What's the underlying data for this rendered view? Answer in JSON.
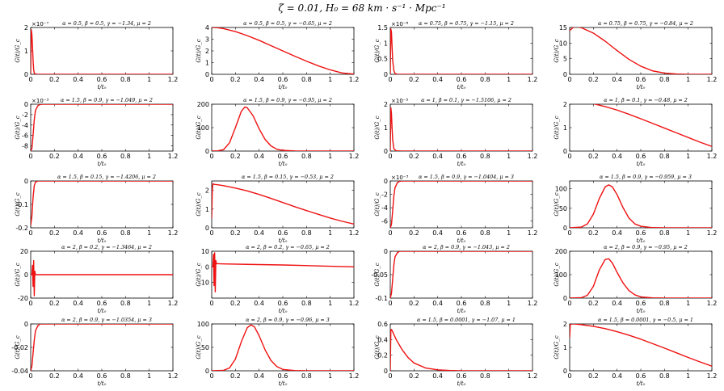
{
  "figure": {
    "title": "ζ = 0.01, H₀ = 68 km · s⁻¹ · Mpc⁻¹"
  },
  "colors": {
    "curve": "#ee1111",
    "axes": "#000000"
  },
  "chart_data": [
    {
      "type": "line",
      "title": "α = 0.5, β = 0.5, γ = −1.34, μ = 2",
      "xlabel": "t/t₀",
      "ylabel": "G(t)/G_c",
      "xlim": [
        0,
        1.2
      ],
      "ylim": [
        0,
        2
      ],
      "y_multiplier": "×10⁻⁷",
      "xticks": [
        0,
        0.2,
        0.4,
        0.6,
        0.8,
        1,
        1.2
      ],
      "yticks": [
        0,
        1,
        2
      ],
      "x": [
        0,
        0.005,
        0.01,
        0.015,
        0.02,
        0.025,
        0.03,
        0.04,
        0.06,
        0.1,
        0.3,
        0.6,
        1.2
      ],
      "y": [
        0,
        1.9,
        1.7,
        1.2,
        0.6,
        0.2,
        0.05,
        0.01,
        0,
        0,
        0,
        0,
        0
      ]
    },
    {
      "type": "line",
      "title": "α = 0.5, β = 0.5, γ = −0.65, μ = 2",
      "xlabel": "t/t₀",
      "ylabel": "G(t)/G_c",
      "xlim": [
        0,
        1.2
      ],
      "ylim": [
        0,
        4
      ],
      "xticks": [
        0,
        0.2,
        0.4,
        0.6,
        0.8,
        1,
        1.2
      ],
      "yticks": [
        0,
        1,
        2,
        3,
        4
      ],
      "x": [
        0,
        0.05,
        0.1,
        0.2,
        0.3,
        0.4,
        0.5,
        0.6,
        0.7,
        0.8,
        0.9,
        1.0,
        1.1,
        1.2
      ],
      "y": [
        4.0,
        3.98,
        3.9,
        3.65,
        3.3,
        2.9,
        2.45,
        2.0,
        1.55,
        1.12,
        0.72,
        0.38,
        0.12,
        0.02
      ]
    },
    {
      "type": "line",
      "title": "α = 0.75, β = 0.75, γ = −1.15, μ = 2",
      "xlabel": "t/t₀",
      "ylabel": "G(t)/G_c",
      "xlim": [
        0,
        1.2
      ],
      "ylim": [
        0,
        1.5
      ],
      "y_multiplier": "×10⁻⁸",
      "xticks": [
        0,
        0.2,
        0.4,
        0.6,
        0.8,
        1,
        1.2
      ],
      "yticks": [
        0,
        0.5,
        1,
        1.5
      ],
      "x": [
        0,
        0.005,
        0.01,
        0.015,
        0.02,
        0.03,
        0.04,
        0.06,
        0.1,
        0.3,
        0.6,
        1.2
      ],
      "y": [
        0,
        1.45,
        1.35,
        0.9,
        0.45,
        0.12,
        0.03,
        0,
        0,
        0,
        0,
        0
      ]
    },
    {
      "type": "line",
      "title": "α = 0.75, β = 0.75, γ = −0.84, μ = 2",
      "xlabel": "t/t₀",
      "ylabel": "G(t)/G_c",
      "xlim": [
        0,
        1.2
      ],
      "ylim": [
        0,
        15
      ],
      "xticks": [
        0,
        0.2,
        0.4,
        0.6,
        0.8,
        1,
        1.2
      ],
      "yticks": [
        0,
        5,
        10,
        15
      ],
      "x": [
        0,
        0.03,
        0.06,
        0.1,
        0.2,
        0.3,
        0.4,
        0.5,
        0.6,
        0.7,
        0.8,
        0.9,
        1.0,
        1.2
      ],
      "y": [
        14.0,
        15.0,
        15.2,
        14.9,
        13.2,
        10.6,
        7.6,
        4.8,
        2.6,
        1.1,
        0.4,
        0.1,
        0.02,
        0
      ]
    },
    {
      "type": "line",
      "title": "α = 1.5, β = 0.9, γ = −1.049, μ = 2",
      "xlabel": "t/t₀",
      "ylabel": "G(t)/G_c",
      "xlim": [
        0,
        1.2
      ],
      "ylim": [
        -9,
        0
      ],
      "y_multiplier": "×10⁻³",
      "xticks": [
        0,
        0.2,
        0.4,
        0.6,
        0.8,
        1,
        1.2
      ],
      "yticks": [
        -8,
        -6,
        -4,
        -2,
        0
      ],
      "x": [
        0,
        0.01,
        0.02,
        0.03,
        0.04,
        0.06,
        0.08,
        0.1,
        0.3,
        0.6,
        1.2
      ],
      "y": [
        -9,
        -8.5,
        -6,
        -3,
        -1.2,
        -0.3,
        -0.05,
        0,
        0,
        0,
        0
      ]
    },
    {
      "type": "line",
      "title": "α = 1.5, β = 0.9, γ = −0.95, μ = 2",
      "xlabel": "t/t₀",
      "ylabel": "G(t)/G_c",
      "xlim": [
        0,
        1.2
      ],
      "ylim": [
        0,
        200
      ],
      "xticks": [
        0,
        0.2,
        0.4,
        0.6,
        0.8,
        1,
        1.2
      ],
      "yticks": [
        0,
        100,
        200
      ],
      "x": [
        0,
        0.05,
        0.1,
        0.15,
        0.2,
        0.25,
        0.28,
        0.3,
        0.35,
        0.4,
        0.45,
        0.5,
        0.55,
        0.6,
        0.7,
        0.8,
        1.2
      ],
      "y": [
        0,
        1,
        6,
        35,
        100,
        170,
        188,
        185,
        150,
        95,
        50,
        22,
        8,
        3,
        0.5,
        0,
        0
      ]
    },
    {
      "type": "line",
      "title": "α = 1, β = 0.1, γ = −1.5106, μ = 2",
      "xlabel": "t/t₀",
      "ylabel": "G(t)/G_c",
      "xlim": [
        0,
        1.2
      ],
      "ylim": [
        0,
        2
      ],
      "y_multiplier": "×10⁻⁵",
      "xticks": [
        0,
        0.2,
        0.4,
        0.6,
        0.8,
        1,
        1.2
      ],
      "yticks": [
        0,
        1,
        2
      ],
      "x": [
        0,
        0.005,
        0.01,
        0.015,
        0.02,
        0.03,
        0.05,
        0.1,
        0.3,
        0.6,
        1.2
      ],
      "y": [
        0,
        1.85,
        1.6,
        1.0,
        0.5,
        0.1,
        0.01,
        0,
        0,
        0,
        0
      ]
    },
    {
      "type": "line",
      "title": "α = 1, β = 0.1, γ = −0.48, μ = 2",
      "xlabel": "t/t₀",
      "ylabel": "G(t)/G_c",
      "xlim": [
        0,
        1.2
      ],
      "ylim": [
        0,
        2
      ],
      "xticks": [
        0,
        0.2,
        0.4,
        0.6,
        0.8,
        1,
        1.2
      ],
      "yticks": [
        0,
        1,
        2
      ],
      "x": [
        0,
        0.05,
        0.1,
        0.2,
        0.3,
        0.4,
        0.5,
        0.6,
        0.7,
        0.8,
        0.9,
        1.0,
        1.1,
        1.2
      ],
      "y": [
        2.1,
        2.12,
        2.1,
        2.02,
        1.9,
        1.75,
        1.57,
        1.38,
        1.18,
        0.98,
        0.78,
        0.58,
        0.38,
        0.2
      ]
    },
    {
      "type": "line",
      "title": "α = 1.5, β = 0.15, γ = −1.4206, μ = 2",
      "xlabel": "t/t₀",
      "ylabel": "G(t)/G_c",
      "xlim": [
        0,
        1.2
      ],
      "ylim": [
        -0.2,
        0
      ],
      "xticks": [
        0,
        0.2,
        0.4,
        0.6,
        0.8,
        1,
        1.2
      ],
      "yticks": [
        -0.2,
        -0.1,
        0
      ],
      "x": [
        0,
        0.01,
        0.02,
        0.03,
        0.04,
        0.06,
        0.1,
        0.3,
        0.6,
        1.2
      ],
      "y": [
        -0.19,
        -0.15,
        -0.07,
        -0.02,
        -0.005,
        0,
        0,
        0,
        0,
        0
      ]
    },
    {
      "type": "line",
      "title": "α = 1.5, β = 0.15, γ = −0.53, μ = 2",
      "xlabel": "t/t₀",
      "ylabel": "G(t)/G_c",
      "xlim": [
        0,
        1.2
      ],
      "ylim": [
        0,
        2.5
      ],
      "xticks": [
        0,
        0.2,
        0.4,
        0.6,
        0.8,
        1,
        1.2
      ],
      "yticks": [
        0,
        1,
        2
      ],
      "x": [
        0,
        0.005,
        0.01,
        0.02,
        0.05,
        0.1,
        0.2,
        0.3,
        0.4,
        0.5,
        0.6,
        0.7,
        0.8,
        0.9,
        1.0,
        1.1,
        1.2
      ],
      "y": [
        0.5,
        2.0,
        2.35,
        2.32,
        2.3,
        2.25,
        2.12,
        1.97,
        1.78,
        1.57,
        1.35,
        1.13,
        0.92,
        0.72,
        0.52,
        0.35,
        0.2
      ]
    },
    {
      "type": "line",
      "title": "α = 1.5, β = 0.9, γ = −1.0404, μ = 3",
      "xlabel": "t/t₀",
      "ylabel": "G(t)/G_c",
      "xlim": [
        0,
        1.2
      ],
      "ylim": [
        -7,
        0
      ],
      "y_multiplier": "×10⁻³",
      "xticks": [
        0,
        0.2,
        0.4,
        0.6,
        0.8,
        1,
        1.2
      ],
      "yticks": [
        -6,
        -4,
        -2,
        0
      ],
      "x": [
        0,
        0.01,
        0.02,
        0.03,
        0.04,
        0.06,
        0.08,
        0.1,
        0.3,
        0.6,
        1.2
      ],
      "y": [
        -7,
        -6.5,
        -4.5,
        -2.3,
        -1,
        -0.25,
        -0.05,
        0,
        0,
        0,
        0
      ]
    },
    {
      "type": "line",
      "title": "α = 1.5, β = 0.9, γ = −0.959, μ = 3",
      "xlabel": "t/t₀",
      "ylabel": "G(t)/G_c",
      "xlim": [
        0,
        1.2
      ],
      "ylim": [
        0,
        120
      ],
      "xticks": [
        0,
        0.2,
        0.4,
        0.6,
        0.8,
        1,
        1.2
      ],
      "yticks": [
        0,
        50,
        100
      ],
      "x": [
        0,
        0.1,
        0.15,
        0.2,
        0.25,
        0.3,
        0.33,
        0.36,
        0.4,
        0.45,
        0.5,
        0.55,
        0.6,
        0.7,
        0.8,
        1.2
      ],
      "y": [
        0,
        2,
        10,
        35,
        75,
        105,
        110,
        105,
        85,
        52,
        25,
        10,
        4,
        0.5,
        0,
        0
      ]
    },
    {
      "type": "line",
      "title": "α = 2, β = 0.2, γ = −1.3464, μ = 2",
      "xlabel": "t/t₀",
      "ylabel": "G(t)/G_c",
      "xlim": [
        0,
        1.2
      ],
      "ylim": [
        -20,
        20
      ],
      "xticks": [
        0,
        0.2,
        0.4,
        0.6,
        0.8,
        1,
        1.2
      ],
      "yticks": [
        -20,
        0,
        20
      ],
      "x": [
        0,
        0.01,
        0.015,
        0.02,
        0.025,
        0.03,
        0.035,
        0.04,
        0.06,
        0.1,
        0.3,
        0.6,
        1.2
      ],
      "y": [
        0,
        0,
        8,
        -10,
        12,
        -18,
        3,
        0,
        0,
        0,
        0,
        0,
        0
      ]
    },
    {
      "type": "line",
      "title": "α = 2, β = 0.2, γ = −0.65, μ = 2",
      "xlabel": "t/t₀",
      "ylabel": "G(t)/G_c",
      "xlim": [
        0,
        1.2
      ],
      "ylim": [
        -20,
        10
      ],
      "xticks": [
        0,
        0.2,
        0.4,
        0.6,
        0.8,
        1,
        1.2
      ],
      "yticks": [
        -10,
        0,
        10
      ],
      "x": [
        0,
        0.01,
        0.015,
        0.02,
        0.025,
        0.03,
        0.035,
        0.04,
        0.05,
        0.1,
        0.3,
        0.6,
        0.9,
        1.2
      ],
      "y": [
        0,
        0,
        8,
        -12,
        9,
        -16,
        4,
        2,
        2,
        1.9,
        1.6,
        1.2,
        0.6,
        0
      ]
    },
    {
      "type": "line",
      "title": "α = 2, β = 0.9, γ = −1.043, μ = 2",
      "xlabel": "t/t₀",
      "ylabel": "G(t)/G_c",
      "xlim": [
        0,
        1.2
      ],
      "ylim": [
        -0.1,
        0
      ],
      "xticks": [
        0,
        0.2,
        0.4,
        0.6,
        0.8,
        1,
        1.2
      ],
      "yticks": [
        -0.1,
        -0.05,
        0
      ],
      "x": [
        0,
        0.01,
        0.02,
        0.03,
        0.04,
        0.06,
        0.08,
        0.1,
        0.3,
        0.6,
        1.2
      ],
      "y": [
        -0.1,
        -0.09,
        -0.06,
        -0.03,
        -0.012,
        -0.003,
        0,
        0,
        0,
        0,
        0
      ]
    },
    {
      "type": "line",
      "title": "α = 2, β = 0.9, γ = −0.95, μ = 2",
      "xlabel": "t/t₀",
      "ylabel": "G(t)/G_c",
      "xlim": [
        0,
        1.2
      ],
      "ylim": [
        0,
        200
      ],
      "xticks": [
        0,
        0.2,
        0.4,
        0.6,
        0.8,
        1,
        1.2
      ],
      "yticks": [
        0,
        100,
        200
      ],
      "x": [
        0,
        0.1,
        0.15,
        0.2,
        0.25,
        0.3,
        0.33,
        0.36,
        0.4,
        0.45,
        0.5,
        0.55,
        0.6,
        0.7,
        0.8,
        1.2
      ],
      "y": [
        0,
        2,
        12,
        50,
        120,
        165,
        168,
        150,
        110,
        65,
        32,
        14,
        5,
        1,
        0,
        0
      ]
    },
    {
      "type": "line",
      "title": "α = 2, β = 0.9, γ = −1.0354, μ = 3",
      "xlabel": "t/t₀",
      "ylabel": "G(t)/G_c",
      "xlim": [
        0,
        1.2
      ],
      "ylim": [
        -0.04,
        0
      ],
      "xticks": [
        0,
        0.2,
        0.4,
        0.6,
        0.8,
        1,
        1.2
      ],
      "yticks": [
        -0.04,
        -0.02,
        0
      ],
      "x": [
        0,
        0.01,
        0.02,
        0.03,
        0.04,
        0.06,
        0.08,
        0.1,
        0.3,
        0.6,
        1.2
      ],
      "y": [
        -0.04,
        -0.036,
        -0.025,
        -0.014,
        -0.006,
        -0.0015,
        0,
        0,
        0,
        0,
        0
      ]
    },
    {
      "type": "line",
      "title": "α = 2, β = 0.9, γ = −0.96, μ = 3",
      "xlabel": "t/t₀",
      "ylabel": "G(t)/G_c",
      "xlim": [
        0,
        1.2
      ],
      "ylim": [
        0,
        100
      ],
      "xticks": [
        0,
        0.2,
        0.4,
        0.6,
        0.8,
        1,
        1.2
      ],
      "yticks": [
        0,
        50,
        100
      ],
      "x": [
        0,
        0.1,
        0.15,
        0.2,
        0.25,
        0.3,
        0.33,
        0.36,
        0.4,
        0.45,
        0.5,
        0.55,
        0.6,
        0.7,
        0.8,
        1.2
      ],
      "y": [
        0,
        1,
        6,
        25,
        62,
        92,
        98,
        94,
        75,
        45,
        22,
        9,
        3,
        0.5,
        0,
        0
      ]
    },
    {
      "type": "line",
      "title": "α = 1.5, β = 0.0001, γ = −1.07, μ = 1",
      "xlabel": "t/t₀",
      "ylabel": "G(t)/G_c",
      "xlim": [
        0,
        1.2
      ],
      "ylim": [
        0,
        0.6
      ],
      "xticks": [
        0,
        0.2,
        0.4,
        0.6,
        0.8,
        1,
        1.2
      ],
      "yticks": [
        0,
        0.2,
        0.4,
        0.6
      ],
      "x": [
        0,
        0.005,
        0.01,
        0.02,
        0.05,
        0.1,
        0.15,
        0.2,
        0.3,
        0.4,
        0.5,
        0.6,
        0.8,
        1.0,
        1.2
      ],
      "y": [
        0,
        0.52,
        0.53,
        0.5,
        0.4,
        0.27,
        0.17,
        0.1,
        0.035,
        0.012,
        0.004,
        0.001,
        0,
        0,
        0
      ]
    },
    {
      "type": "line",
      "title": "α = 1.5, β = 0.0001, γ = −0.5, μ = 1",
      "xlabel": "t/t₀",
      "ylabel": "G(t)/G_c",
      "xlim": [
        0,
        1.2
      ],
      "ylim": [
        0,
        2
      ],
      "xticks": [
        0,
        0.2,
        0.4,
        0.6,
        0.8,
        1,
        1.2
      ],
      "yticks": [
        0,
        1,
        2
      ],
      "x": [
        0,
        0.005,
        0.01,
        0.03,
        0.06,
        0.1,
        0.2,
        0.3,
        0.4,
        0.5,
        0.6,
        0.7,
        0.8,
        0.9,
        1.0,
        1.1,
        1.2
      ],
      "y": [
        1.4,
        1.95,
        2.0,
        2.0,
        1.99,
        1.97,
        1.9,
        1.8,
        1.67,
        1.52,
        1.35,
        1.16,
        0.97,
        0.77,
        0.57,
        0.38,
        0.2
      ]
    }
  ]
}
